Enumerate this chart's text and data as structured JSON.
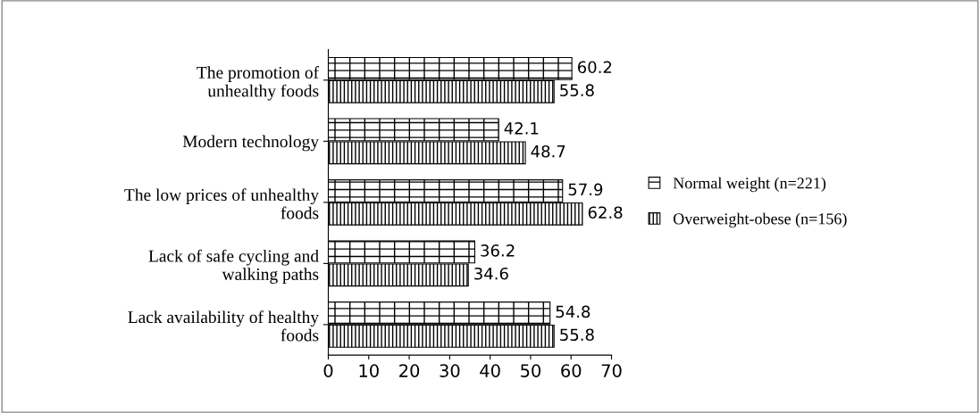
{
  "chart_data": {
    "type": "bar",
    "orientation": "horizontal",
    "categories": [
      "The promotion of\nunhealthy foods",
      "Modern technology",
      "The low prices of unhealthy\nfoods",
      "Lack of safe cycling and\nwalking paths",
      "Lack availability of healthy\nfoods"
    ],
    "series": [
      {
        "name": "Normal weight (n=221)",
        "color": "#000000",
        "values": [
          60.2,
          42.1,
          57.9,
          36.2,
          54.8
        ]
      },
      {
        "name": "Overweight-obese (n=156)",
        "color": "#000000",
        "values": [
          55.8,
          48.7,
          62.8,
          34.6,
          55.8
        ]
      }
    ],
    "xlim": [
      0,
      70
    ],
    "xticks": [
      0,
      10,
      20,
      30,
      40,
      50,
      60,
      70
    ],
    "data_labels": true,
    "grid": false,
    "legend": "right"
  }
}
